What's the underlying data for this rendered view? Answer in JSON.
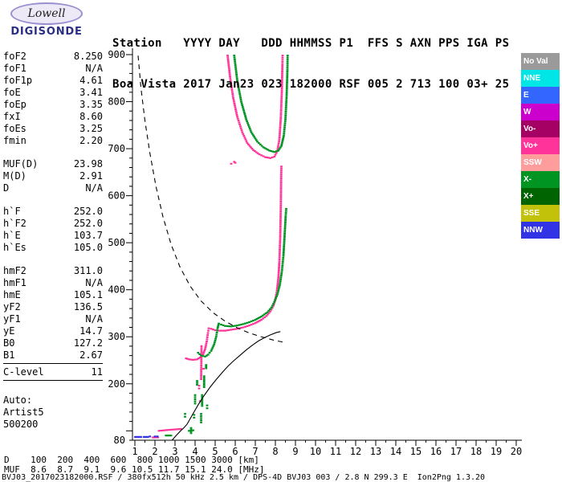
{
  "logo": {
    "line1": "Lowell",
    "line2": "DIGISONDE"
  },
  "header": {
    "row1": "Station   YYYY DAY   DDD HHMMSS P1  FFS S AXN PPS IGA PS",
    "row2": "Boa Vista 2017 Jan23 023 182000 RSF 005 2 713 100 03+ 25"
  },
  "params": [
    {
      "t": "row",
      "label": "foF2",
      "value": "8.250"
    },
    {
      "t": "row",
      "label": "foF1",
      "value": "N/A"
    },
    {
      "t": "row",
      "label": "foF1p",
      "value": "4.61"
    },
    {
      "t": "row",
      "label": "foE",
      "value": "3.41"
    },
    {
      "t": "row",
      "label": "foEp",
      "value": "3.35"
    },
    {
      "t": "row",
      "label": "fxI",
      "value": "8.60"
    },
    {
      "t": "row",
      "label": "foEs",
      "value": "3.25"
    },
    {
      "t": "row",
      "label": "fmin",
      "value": "2.20"
    },
    {
      "t": "gap"
    },
    {
      "t": "row",
      "label": "MUF(D)",
      "value": "23.98"
    },
    {
      "t": "row",
      "label": "M(D)",
      "value": "2.91"
    },
    {
      "t": "row",
      "label": "D",
      "value": "N/A"
    },
    {
      "t": "gap"
    },
    {
      "t": "row",
      "label": "h`F",
      "value": "252.0"
    },
    {
      "t": "row",
      "label": "h`F2",
      "value": "252.0"
    },
    {
      "t": "row",
      "label": "h`E",
      "value": "103.7"
    },
    {
      "t": "row",
      "label": "h`Es",
      "value": "105.0"
    },
    {
      "t": "gap"
    },
    {
      "t": "row",
      "label": "hmF2",
      "value": "311.0"
    },
    {
      "t": "row",
      "label": "hmF1",
      "value": "N/A"
    },
    {
      "t": "row",
      "label": "hmE",
      "value": "105.1"
    },
    {
      "t": "row",
      "label": "yF2",
      "value": "136.5"
    },
    {
      "t": "row",
      "label": "yF1",
      "value": "N/A"
    },
    {
      "t": "row",
      "label": "yE",
      "value": "14.7"
    },
    {
      "t": "row",
      "label": "B0",
      "value": "127.2"
    },
    {
      "t": "row",
      "label": "B1",
      "value": "2.67"
    },
    {
      "t": "rule"
    },
    {
      "t": "row",
      "label": "C-level",
      "value": "11"
    },
    {
      "t": "rule"
    },
    {
      "t": "gap"
    },
    {
      "t": "text",
      "label": "Auto:"
    },
    {
      "t": "text",
      "label": "Artist5"
    },
    {
      "t": "text",
      "label": "500200"
    }
  ],
  "legend": [
    {
      "label": "No Val",
      "color": "#9A9A9A"
    },
    {
      "label": "NNE",
      "color": "#00E6E6"
    },
    {
      "label": "E",
      "color": "#3366FF"
    },
    {
      "label": "W",
      "color": "#CC00CC"
    },
    {
      "label": "Vo-",
      "color": "#A50064"
    },
    {
      "label": "Vo+",
      "color": "#FF3399"
    },
    {
      "label": "SSW",
      "color": "#FF9D9D"
    },
    {
      "label": "X-",
      "color": "#009422"
    },
    {
      "label": "X+",
      "color": "#006400"
    },
    {
      "label": "SSE",
      "color": "#C2C20A"
    },
    {
      "label": "NNW",
      "color": "#3333E6"
    }
  ],
  "chart_data": {
    "type": "scatter",
    "x_units": "MHz",
    "y_units": "km",
    "xlim": [
      1,
      20
    ],
    "ylim": [
      80,
      900
    ],
    "x_ticks": [
      1,
      2,
      3,
      4,
      5,
      6,
      7,
      8,
      9,
      10,
      11,
      12,
      13,
      14,
      15,
      16,
      17,
      18,
      19,
      20
    ],
    "y_tick_labels": [
      900,
      800,
      700,
      600,
      500,
      400,
      300,
      200,
      80
    ],
    "grid": false,
    "legend_position": "right",
    "muf_table": {
      "distances_km": [
        100,
        200,
        400,
        600,
        800,
        1000,
        1500,
        3000
      ],
      "muf_mhz": [
        8.6,
        8.7,
        9.1,
        9.6,
        10.5,
        11.7,
        15.1,
        24.0
      ]
    },
    "series": [
      {
        "name": "O-mode E-Es trace",
        "color": "#FF3399",
        "style": "dots",
        "segments": [
          [
            [
              2.2,
              100
            ],
            [
              2.7,
              102
            ],
            [
              3.3,
              104
            ]
          ],
          [
            [
              1.9,
              86
            ],
            [
              2.15,
              86
            ]
          ]
        ]
      },
      {
        "name": "O-mode F trace",
        "color": "#FF3399",
        "style": "dots",
        "segments": [
          [
            [
              3.55,
              254
            ],
            [
              3.7,
              252
            ],
            [
              3.9,
              251
            ],
            [
              4.1,
              252
            ],
            [
              4.25,
              256
            ],
            [
              4.4,
              263
            ],
            [
              4.5,
              274
            ],
            [
              4.58,
              290
            ],
            [
              4.64,
              308
            ],
            [
              4.68,
              318
            ],
            [
              4.8,
              317
            ],
            [
              5.0,
              314
            ],
            [
              5.2,
              313
            ],
            [
              5.5,
              313
            ],
            [
              5.8,
              315
            ],
            [
              6.1,
              317
            ],
            [
              6.4,
              320
            ],
            [
              6.7,
              324
            ],
            [
              7.0,
              329
            ],
            [
              7.3,
              336
            ],
            [
              7.55,
              344
            ],
            [
              7.75,
              354
            ],
            [
              7.9,
              366
            ],
            [
              8.0,
              380
            ],
            [
              8.08,
              398
            ],
            [
              8.15,
              425
            ],
            [
              8.2,
              460
            ],
            [
              8.24,
              510
            ],
            [
              8.27,
              575
            ],
            [
              8.29,
              645
            ],
            [
              8.3,
              662
            ]
          ],
          [
            [
              4.3,
              210
            ],
            [
              4.32,
              280
            ]
          ],
          [
            [
              4.2,
              190
            ],
            [
              4.2,
              196
            ]
          ],
          [
            [
              4.25,
              163
            ]
          ],
          [
            [
              4.42,
              232
            ]
          ]
        ]
      },
      {
        "name": "X-mode F trace",
        "color": "#009422",
        "style": "dots",
        "segments": [
          [
            [
              4.15,
              266
            ],
            [
              4.3,
              260
            ],
            [
              4.5,
              258
            ],
            [
              4.65,
              262
            ],
            [
              4.8,
              270
            ],
            [
              4.95,
              284
            ],
            [
              5.05,
              300
            ],
            [
              5.12,
              318
            ],
            [
              5.18,
              328
            ],
            [
              5.3,
              326
            ],
            [
              5.5,
              323
            ],
            [
              5.8,
              322
            ],
            [
              6.1,
              324
            ],
            [
              6.4,
              327
            ],
            [
              6.7,
              331
            ],
            [
              7.0,
              336
            ],
            [
              7.3,
              343
            ],
            [
              7.6,
              352
            ],
            [
              7.8,
              362
            ],
            [
              7.95,
              374
            ],
            [
              8.1,
              390
            ],
            [
              8.22,
              410
            ],
            [
              8.32,
              438
            ],
            [
              8.4,
              472
            ],
            [
              8.46,
              515
            ],
            [
              8.51,
              555
            ],
            [
              8.54,
              572
            ]
          ]
        ]
      },
      {
        "name": "X-mode spread echoes",
        "color": "#009422",
        "style": "dots",
        "segments": [
          [
            [
              3.7,
              100
            ],
            [
              3.9,
              101
            ]
          ],
          [
            [
              3.5,
              130
            ],
            [
              3.5,
              136
            ]
          ],
          [
            [
              3.8,
              95
            ],
            [
              3.8,
              106
            ]
          ],
          [
            [
              3.95,
              128
            ],
            [
              3.95,
              134
            ]
          ],
          [
            [
              4.0,
              158
            ],
            [
              4.0,
              176
            ]
          ],
          [
            [
              4.1,
              198
            ],
            [
              4.1,
              206
            ]
          ],
          [
            [
              4.3,
              118
            ],
            [
              4.3,
              136
            ]
          ],
          [
            [
              4.35,
              153
            ],
            [
              4.35,
              176
            ]
          ],
          [
            [
              4.45,
              193
            ],
            [
              4.45,
              216
            ]
          ],
          [
            [
              4.55,
              233
            ],
            [
              4.55,
              240
            ]
          ],
          [
            [
              4.6,
              148
            ],
            [
              4.6,
              154
            ]
          ],
          [
            [
              2.55,
              90
            ],
            [
              2.8,
              90
            ]
          ]
        ]
      },
      {
        "name": "O-mode second hop",
        "color": "#FF3399",
        "style": "dots",
        "segments": [
          [
            [
              5.62,
              898
            ],
            [
              5.75,
              850
            ],
            [
              5.9,
              808
            ],
            [
              6.1,
              768
            ],
            [
              6.35,
              735
            ],
            [
              6.6,
              712
            ],
            [
              6.9,
              697
            ],
            [
              7.2,
              688
            ],
            [
              7.5,
              682
            ],
            [
              7.75,
              680
            ],
            [
              7.95,
              683
            ],
            [
              8.1,
              695
            ],
            [
              8.2,
              720
            ],
            [
              8.27,
              765
            ],
            [
              8.32,
              820
            ],
            [
              8.35,
              880
            ],
            [
              8.36,
              898
            ]
          ],
          [
            [
              5.8,
              668
            ]
          ],
          [
            [
              5.95,
              672
            ],
            [
              6.0,
              670
            ]
          ]
        ]
      },
      {
        "name": "X-mode second hop",
        "color": "#009422",
        "style": "dots",
        "segments": [
          [
            [
              5.95,
              898
            ],
            [
              6.1,
              845
            ],
            [
              6.3,
              800
            ],
            [
              6.55,
              762
            ],
            [
              6.8,
              735
            ],
            [
              7.1,
              715
            ],
            [
              7.4,
              703
            ],
            [
              7.7,
              696
            ],
            [
              7.95,
              693
            ],
            [
              8.15,
              696
            ],
            [
              8.3,
              706
            ],
            [
              8.42,
              728
            ],
            [
              8.5,
              762
            ],
            [
              8.56,
              812
            ],
            [
              8.6,
              868
            ],
            [
              8.61,
              898
            ]
          ]
        ]
      },
      {
        "name": "NNW noise marks",
        "color": "#3333E6",
        "style": "dots",
        "segments": [
          [
            [
              1.02,
              87
            ],
            [
              1.3,
              87
            ]
          ],
          [
            [
              1.45,
              87
            ],
            [
              1.64,
              87
            ]
          ],
          [
            [
              1.75,
              88
            ]
          ],
          [
            [
              2.0,
              88
            ],
            [
              2.12,
              88
            ]
          ]
        ]
      },
      {
        "name": "true height profile",
        "color": "#000000",
        "style": "line",
        "segments": [
          [
            [
              2.85,
              80
            ],
            [
              3.1,
              92
            ],
            [
              3.3,
              101
            ],
            [
              3.41,
              105
            ],
            [
              3.6,
              114
            ],
            [
              3.85,
              133
            ],
            [
              4.15,
              155
            ],
            [
              4.45,
              175
            ],
            [
              4.75,
              193
            ],
            [
              5.05,
              209
            ],
            [
              5.35,
              224
            ],
            [
              5.65,
              238
            ],
            [
              5.95,
              250
            ],
            [
              6.25,
              261
            ],
            [
              6.55,
              272
            ],
            [
              6.85,
              282
            ],
            [
              7.15,
              291
            ],
            [
              7.45,
              298
            ],
            [
              7.75,
              304
            ],
            [
              8.05,
              309
            ],
            [
              8.25,
              311
            ]
          ]
        ]
      },
      {
        "name": "MUF transmission curve",
        "color": "#000000",
        "style": "dash",
        "segments": [
          [
            [
              1.16,
              898
            ],
            [
              1.3,
              830
            ],
            [
              1.5,
              760
            ],
            [
              1.75,
              690
            ],
            [
              2.05,
              620
            ],
            [
              2.4,
              555
            ],
            [
              2.8,
              497
            ],
            [
              3.25,
              448
            ],
            [
              3.75,
              408
            ],
            [
              4.3,
              376
            ],
            [
              4.9,
              351
            ],
            [
              5.5,
              333
            ],
            [
              6.1,
              319
            ],
            [
              6.7,
              308
            ],
            [
              7.3,
              300
            ],
            [
              7.9,
              293
            ],
            [
              8.45,
              288
            ]
          ]
        ]
      }
    ]
  },
  "footer": {
    "d_row": "D    100  200  400  600  800 1000 1500 3000 [km]",
    "muf_row": "MUF  8.6  8.7  9.1  9.6 10.5 11.7 15.1 24.0 [MHz]",
    "status": "BVJ03_2017023182000.RSF / 380fx512h 50 kHz 2.5 km / DPS-4D BVJ03 003 / 2.8 N 299.3 E  Ion2Png 1.3.20"
  }
}
